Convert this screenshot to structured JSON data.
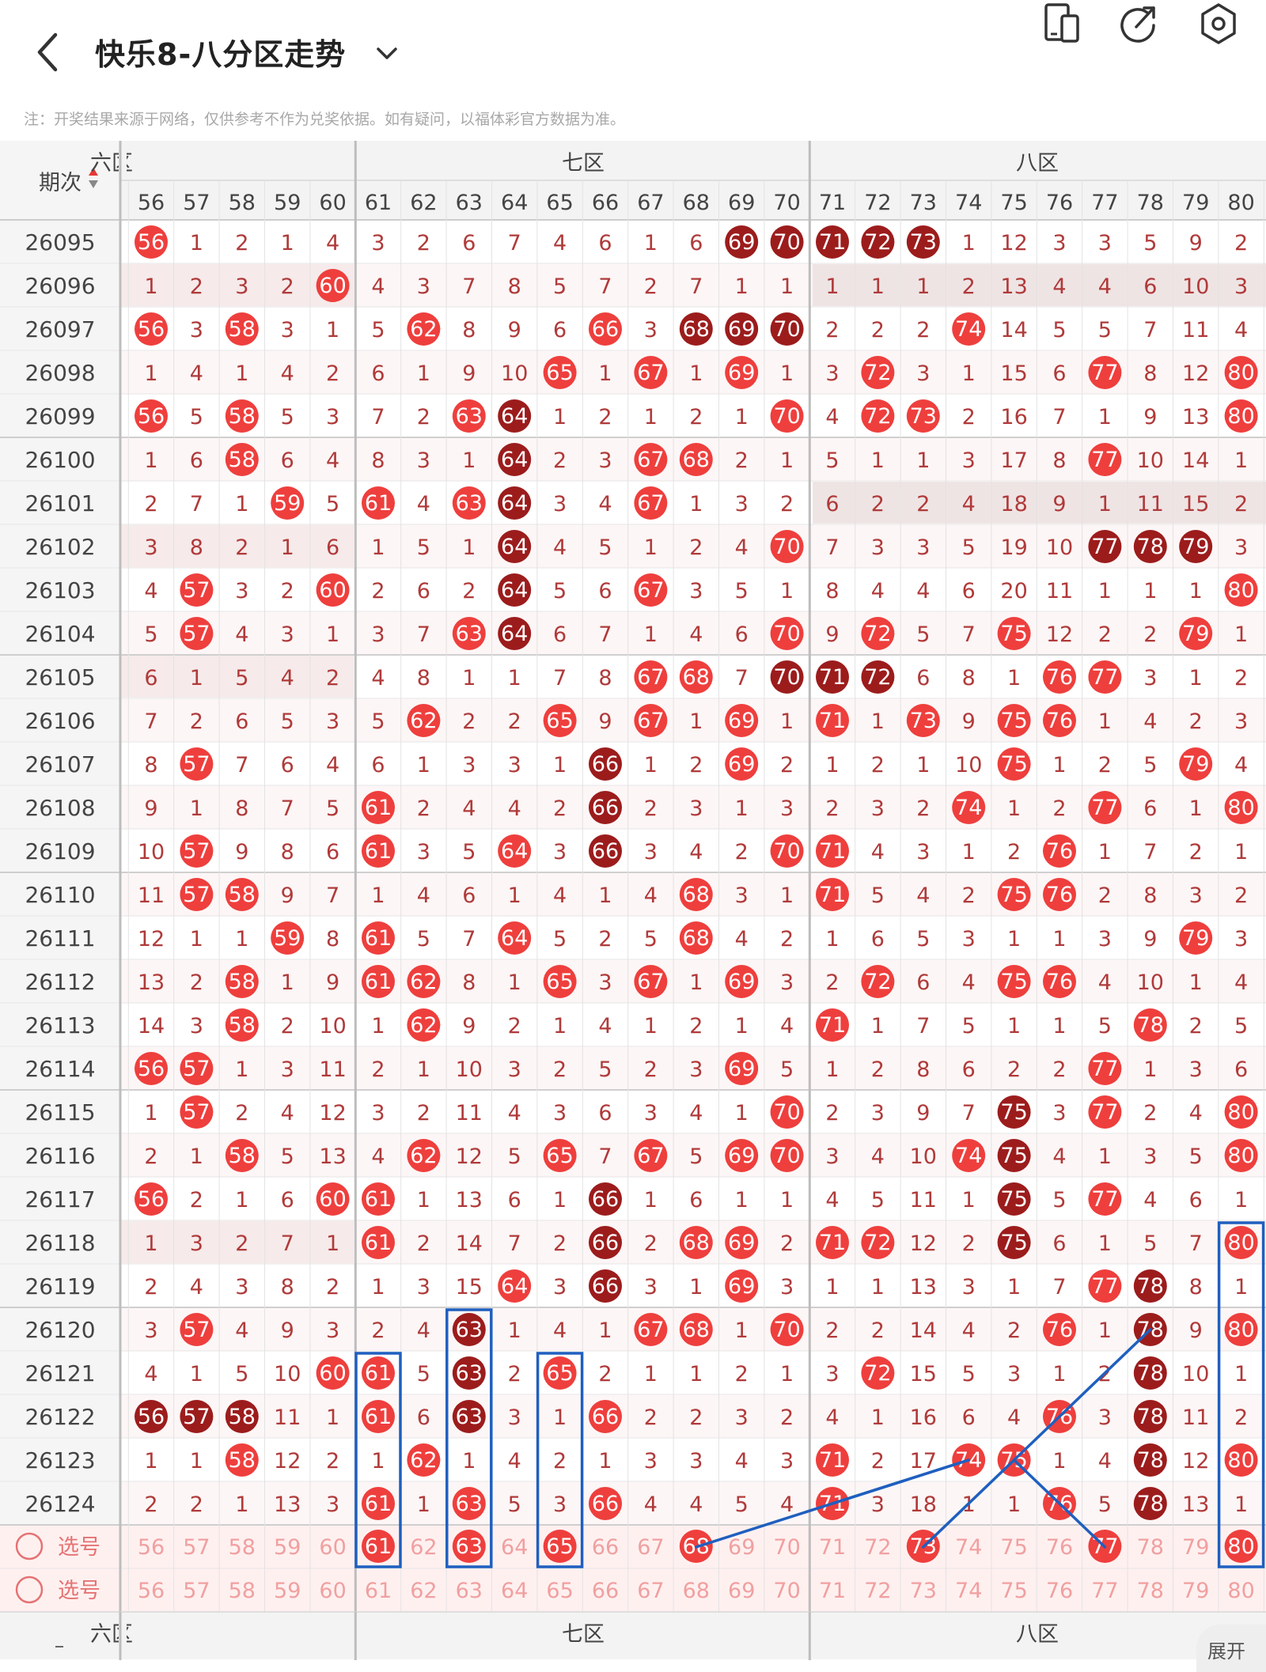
{
  "header": {
    "title": "快乐8-八分区走势",
    "icons": [
      "back-icon",
      "chevron-down-icon",
      "device-switch-icon",
      "share-icon",
      "settings-icon"
    ]
  },
  "disclaimer": "注：开奖结果来源于网络，仅供参考不作为兑奖依据。如有疑问，以福体彩官方数据为准。",
  "table": {
    "period_label": "期次",
    "zones": [
      "六区",
      "七区",
      "八区"
    ],
    "columns": [
      56,
      57,
      58,
      59,
      60,
      61,
      62,
      63,
      64,
      65,
      66,
      67,
      68,
      69,
      70,
      71,
      72,
      73,
      74,
      75,
      76,
      77,
      78,
      79,
      80
    ],
    "rows": [
      {
        "period": "26095",
        "cells": [
          "H56",
          "1",
          "2",
          "1",
          "4",
          "3",
          "2",
          "6",
          "7",
          "4",
          "6",
          "1",
          "6",
          "D69",
          "D70",
          "D71",
          "D72",
          "D73",
          "1",
          "12",
          "3",
          "3",
          "5",
          "9",
          "2"
        ]
      },
      {
        "period": "26096",
        "cells": [
          "1",
          "2",
          "3",
          "2",
          "H60",
          "4",
          "3",
          "7",
          "8",
          "5",
          "7",
          "2",
          "7",
          "1",
          "1",
          "1",
          "1",
          "1",
          "2",
          "13",
          "4",
          "4",
          "6",
          "10",
          "3"
        ]
      },
      {
        "period": "26097",
        "cells": [
          "H56",
          "3",
          "H58",
          "3",
          "1",
          "5",
          "H62",
          "8",
          "9",
          "6",
          "H66",
          "3",
          "D68",
          "D69",
          "D70",
          "2",
          "2",
          "2",
          "H74",
          "14",
          "5",
          "5",
          "7",
          "11",
          "4"
        ]
      },
      {
        "period": "26098",
        "cells": [
          "1",
          "4",
          "1",
          "4",
          "2",
          "6",
          "1",
          "9",
          "10",
          "H65",
          "1",
          "H67",
          "1",
          "H69",
          "1",
          "3",
          "H72",
          "3",
          "1",
          "15",
          "6",
          "H77",
          "8",
          "12",
          "H80"
        ]
      },
      {
        "period": "26099",
        "cells": [
          "H56",
          "5",
          "H58",
          "5",
          "3",
          "7",
          "2",
          "H63",
          "D64",
          "1",
          "2",
          "1",
          "2",
          "1",
          "H70",
          "4",
          "H72",
          "H73",
          "2",
          "16",
          "7",
          "1",
          "9",
          "13",
          "H80"
        ]
      },
      {
        "period": "26100",
        "cells": [
          "1",
          "6",
          "H58",
          "6",
          "4",
          "8",
          "3",
          "1",
          "D64",
          "2",
          "3",
          "H67",
          "H68",
          "2",
          "1",
          "5",
          "1",
          "1",
          "3",
          "17",
          "8",
          "H77",
          "10",
          "14",
          "1"
        ]
      },
      {
        "period": "26101",
        "cells": [
          "2",
          "7",
          "1",
          "H59",
          "5",
          "H61",
          "4",
          "H63",
          "D64",
          "3",
          "4",
          "H67",
          "1",
          "3",
          "2",
          "6",
          "2",
          "2",
          "4",
          "18",
          "9",
          "1",
          "11",
          "15",
          "2"
        ]
      },
      {
        "period": "26102",
        "cells": [
          "3",
          "8",
          "2",
          "1",
          "6",
          "1",
          "5",
          "1",
          "D64",
          "4",
          "5",
          "1",
          "2",
          "4",
          "H70",
          "7",
          "3",
          "3",
          "5",
          "19",
          "10",
          "D77",
          "D78",
          "D79",
          "3"
        ]
      },
      {
        "period": "26103",
        "cells": [
          "4",
          "H57",
          "3",
          "2",
          "H60",
          "2",
          "6",
          "2",
          "D64",
          "5",
          "6",
          "H67",
          "3",
          "5",
          "1",
          "8",
          "4",
          "4",
          "6",
          "20",
          "11",
          "1",
          "1",
          "1",
          "H80"
        ]
      },
      {
        "period": "26104",
        "cells": [
          "5",
          "H57",
          "4",
          "3",
          "1",
          "3",
          "7",
          "H63",
          "D64",
          "6",
          "7",
          "1",
          "4",
          "6",
          "H70",
          "9",
          "H72",
          "5",
          "7",
          "H75",
          "12",
          "2",
          "2",
          "H79",
          "1"
        ]
      },
      {
        "period": "26105",
        "cells": [
          "6",
          "1",
          "5",
          "4",
          "2",
          "4",
          "8",
          "1",
          "1",
          "7",
          "8",
          "H67",
          "H68",
          "7",
          "D70",
          "D71",
          "D72",
          "6",
          "8",
          "1",
          "H76",
          "H77",
          "3",
          "1",
          "2"
        ]
      },
      {
        "period": "26106",
        "cells": [
          "7",
          "2",
          "6",
          "5",
          "3",
          "5",
          "H62",
          "2",
          "2",
          "H65",
          "9",
          "H67",
          "1",
          "H69",
          "1",
          "H71",
          "1",
          "H73",
          "9",
          "H75",
          "H76",
          "1",
          "4",
          "2",
          "3"
        ]
      },
      {
        "period": "26107",
        "cells": [
          "8",
          "H57",
          "7",
          "6",
          "4",
          "6",
          "1",
          "3",
          "3",
          "1",
          "D66",
          "1",
          "2",
          "H69",
          "2",
          "1",
          "2",
          "1",
          "10",
          "H75",
          "1",
          "2",
          "5",
          "H79",
          "4"
        ]
      },
      {
        "period": "26108",
        "cells": [
          "9",
          "1",
          "8",
          "7",
          "5",
          "H61",
          "2",
          "4",
          "4",
          "2",
          "D66",
          "2",
          "3",
          "1",
          "3",
          "2",
          "3",
          "2",
          "H74",
          "1",
          "2",
          "H77",
          "6",
          "1",
          "H80"
        ]
      },
      {
        "period": "26109",
        "cells": [
          "10",
          "H57",
          "9",
          "8",
          "6",
          "H61",
          "3",
          "5",
          "H64",
          "3",
          "D66",
          "3",
          "4",
          "2",
          "H70",
          "H71",
          "4",
          "3",
          "1",
          "2",
          "H76",
          "1",
          "7",
          "2",
          "1"
        ]
      },
      {
        "period": "26110",
        "cells": [
          "11",
          "H57",
          "H58",
          "9",
          "7",
          "1",
          "4",
          "6",
          "1",
          "4",
          "1",
          "4",
          "H68",
          "3",
          "1",
          "H71",
          "5",
          "4",
          "2",
          "H75",
          "H76",
          "2",
          "8",
          "3",
          "2"
        ]
      },
      {
        "period": "26111",
        "cells": [
          "12",
          "1",
          "1",
          "H59",
          "8",
          "H61",
          "5",
          "7",
          "H64",
          "5",
          "2",
          "5",
          "H68",
          "4",
          "2",
          "1",
          "6",
          "5",
          "3",
          "1",
          "1",
          "3",
          "9",
          "H79",
          "3"
        ]
      },
      {
        "period": "26112",
        "cells": [
          "13",
          "2",
          "H58",
          "1",
          "9",
          "H61",
          "H62",
          "8",
          "1",
          "H65",
          "3",
          "H67",
          "1",
          "H69",
          "3",
          "2",
          "H72",
          "6",
          "4",
          "H75",
          "H76",
          "4",
          "10",
          "1",
          "4"
        ]
      },
      {
        "period": "26113",
        "cells": [
          "14",
          "3",
          "H58",
          "2",
          "10",
          "1",
          "H62",
          "9",
          "2",
          "1",
          "4",
          "1",
          "2",
          "1",
          "4",
          "H71",
          "1",
          "7",
          "5",
          "1",
          "1",
          "5",
          "H78",
          "2",
          "5"
        ]
      },
      {
        "period": "26114",
        "cells": [
          "H56",
          "H57",
          "1",
          "3",
          "11",
          "2",
          "1",
          "10",
          "3",
          "2",
          "5",
          "2",
          "3",
          "H69",
          "5",
          "1",
          "2",
          "8",
          "6",
          "2",
          "2",
          "H77",
          "1",
          "3",
          "6"
        ]
      },
      {
        "period": "26115",
        "cells": [
          "1",
          "H57",
          "2",
          "4",
          "12",
          "3",
          "2",
          "11",
          "4",
          "3",
          "6",
          "3",
          "4",
          "1",
          "H70",
          "2",
          "3",
          "9",
          "7",
          "D75",
          "3",
          "H77",
          "2",
          "4",
          "H80"
        ]
      },
      {
        "period": "26116",
        "cells": [
          "2",
          "1",
          "H58",
          "5",
          "13",
          "4",
          "H62",
          "12",
          "5",
          "H65",
          "7",
          "H67",
          "5",
          "H69",
          "H70",
          "3",
          "4",
          "10",
          "H74",
          "D75",
          "4",
          "1",
          "3",
          "5",
          "H80"
        ]
      },
      {
        "period": "26117",
        "cells": [
          "H56",
          "2",
          "1",
          "6",
          "H60",
          "H61",
          "1",
          "13",
          "6",
          "1",
          "D66",
          "1",
          "6",
          "1",
          "1",
          "4",
          "5",
          "11",
          "1",
          "D75",
          "5",
          "H77",
          "4",
          "6",
          "1"
        ]
      },
      {
        "period": "26118",
        "cells": [
          "1",
          "3",
          "2",
          "7",
          "1",
          "H61",
          "2",
          "14",
          "7",
          "2",
          "D66",
          "2",
          "H68",
          "H69",
          "2",
          "H71",
          "H72",
          "12",
          "2",
          "D75",
          "6",
          "1",
          "5",
          "7",
          "H80"
        ]
      },
      {
        "period": "26119",
        "cells": [
          "2",
          "4",
          "3",
          "8",
          "2",
          "1",
          "3",
          "15",
          "H64",
          "3",
          "D66",
          "3",
          "1",
          "H69",
          "3",
          "1",
          "1",
          "13",
          "3",
          "1",
          "7",
          "H77",
          "D78",
          "8",
          "1"
        ]
      },
      {
        "period": "26120",
        "cells": [
          "3",
          "H57",
          "4",
          "9",
          "3",
          "2",
          "4",
          "D63",
          "1",
          "4",
          "1",
          "H67",
          "H68",
          "1",
          "H70",
          "2",
          "2",
          "14",
          "4",
          "2",
          "H76",
          "1",
          "D78",
          "9",
          "H80"
        ]
      },
      {
        "period": "26121",
        "cells": [
          "4",
          "1",
          "5",
          "10",
          "H60",
          "H61",
          "5",
          "D63",
          "2",
          "H65",
          "2",
          "1",
          "1",
          "2",
          "1",
          "3",
          "H72",
          "15",
          "5",
          "3",
          "1",
          "2",
          "D78",
          "10",
          "1"
        ]
      },
      {
        "period": "26122",
        "cells": [
          "D56",
          "D57",
          "D58",
          "11",
          "1",
          "H61",
          "6",
          "D63",
          "3",
          "1",
          "H66",
          "2",
          "2",
          "3",
          "2",
          "4",
          "1",
          "16",
          "6",
          "4",
          "H76",
          "3",
          "D78",
          "11",
          "2"
        ]
      },
      {
        "period": "26123",
        "cells": [
          "1",
          "1",
          "H58",
          "12",
          "2",
          "1",
          "H62",
          "1",
          "4",
          "2",
          "1",
          "3",
          "3",
          "4",
          "3",
          "H71",
          "2",
          "17",
          "H74",
          "H75",
          "1",
          "4",
          "D78",
          "12",
          "H80"
        ]
      },
      {
        "period": "26124",
        "cells": [
          "2",
          "2",
          "1",
          "13",
          "3",
          "H61",
          "1",
          "H63",
          "5",
          "3",
          "H66",
          "4",
          "4",
          "5",
          "4",
          "H71",
          "3",
          "18",
          "1",
          "1",
          "H76",
          "5",
          "D78",
          "13",
          "1"
        ]
      }
    ],
    "select_rows": [
      {
        "label": "选号",
        "picked": [
          61,
          63,
          65,
          68,
          73,
          77,
          80
        ]
      },
      {
        "label": "选号",
        "picked": []
      }
    ],
    "expand_label": "展开",
    "colors": {
      "hot": "#ee3f3d",
      "dark": "#9c1c1c",
      "text": "#b03a3a",
      "grid": "#dddddd",
      "row_shade": "#f6eaea",
      "select_bg": "#fff0f0",
      "line": "#1f5fbf"
    }
  }
}
